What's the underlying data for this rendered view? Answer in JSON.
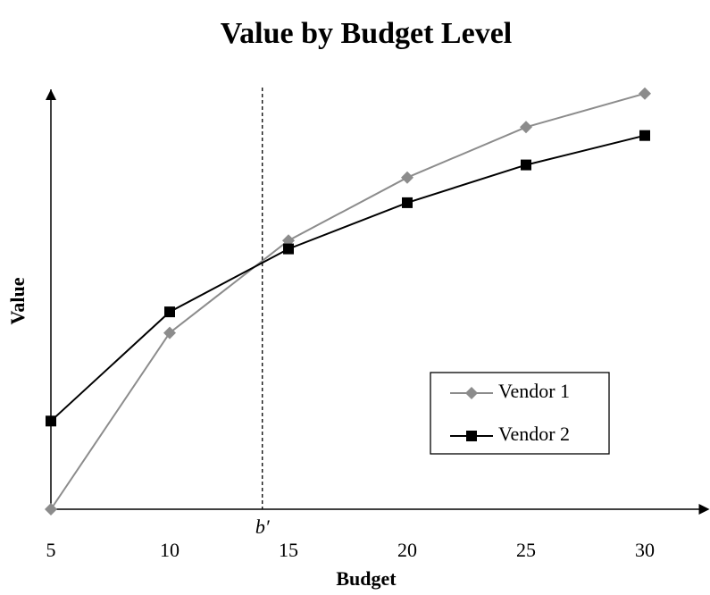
{
  "chart_data": {
    "type": "line",
    "title": "Value by Budget Level",
    "x_label": "Budget",
    "y_label": "Value",
    "x": [
      5,
      10,
      15,
      20,
      25,
      30
    ],
    "series": [
      {
        "name": "Vendor 1",
        "color": "#8c8c8c",
        "marker": "diamond",
        "values": [
          0,
          42,
          64,
          79,
          91,
          99
        ]
      },
      {
        "name": "Vendor 2",
        "color": "#000000",
        "marker": "square",
        "values": [
          21,
          47,
          62,
          73,
          82,
          89
        ]
      }
    ],
    "xlim": [
      5,
      32.5
    ],
    "xticks": [
      5,
      10,
      15,
      20,
      25,
      30
    ],
    "ylim": [
      0,
      100
    ],
    "annotations": [
      {
        "label": "b′",
        "x": 13.9
      }
    ],
    "legend": "right",
    "grid": false
  }
}
